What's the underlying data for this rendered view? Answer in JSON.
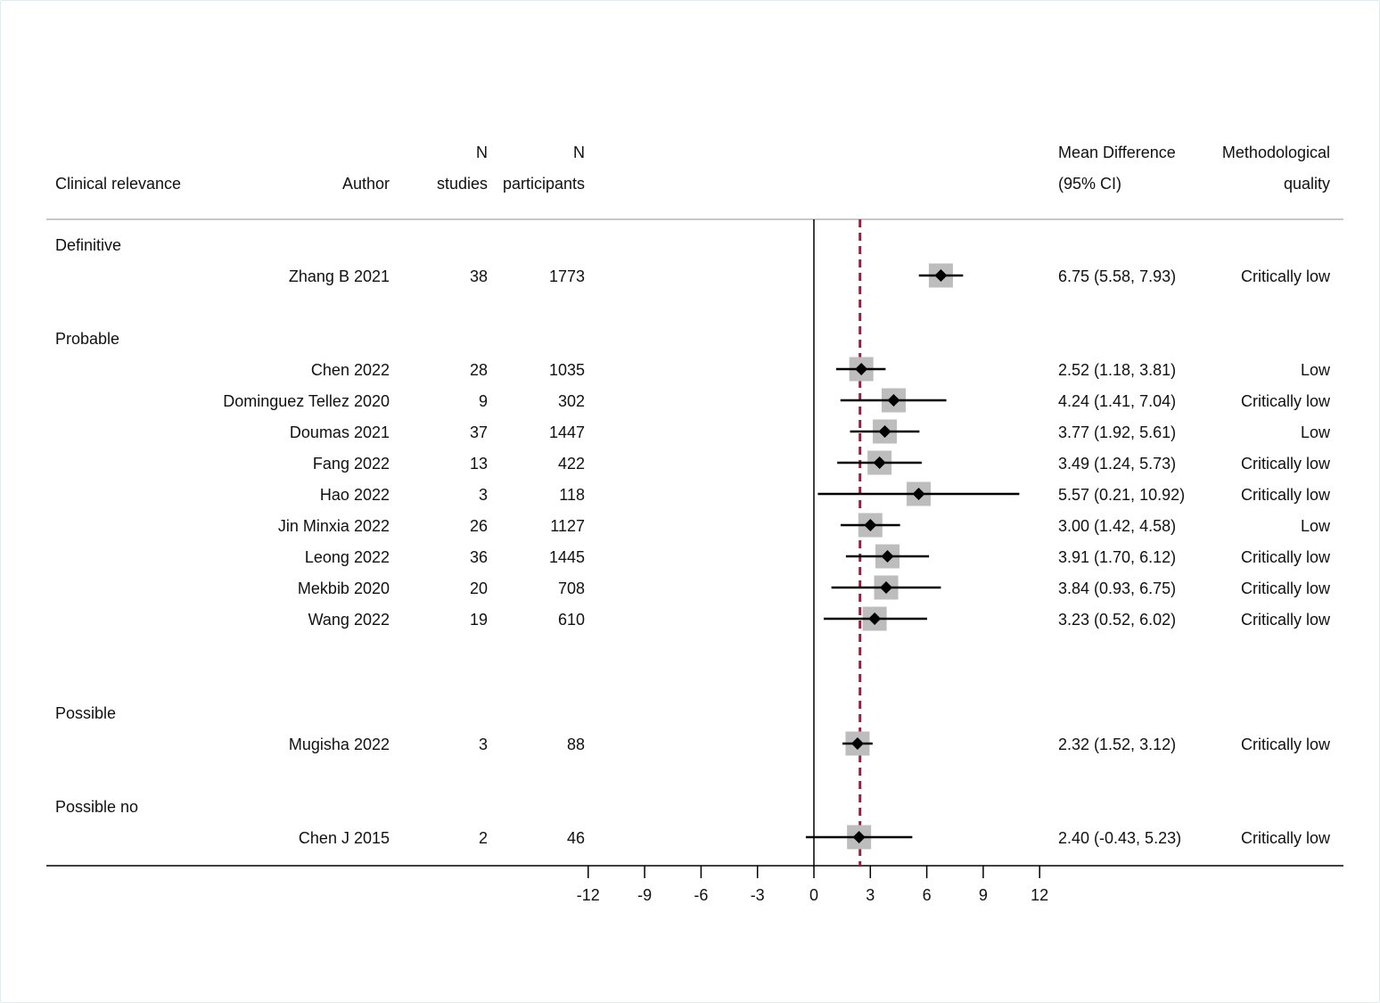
{
  "chart_data": {
    "type": "forest",
    "headers": {
      "clinical_relevance": "Clinical relevance",
      "author": "Author",
      "n_studies": [
        "N",
        "studies"
      ],
      "n_participants": [
        "N",
        "participants"
      ],
      "estimate": [
        "Mean Difference",
        "(95% CI)"
      ],
      "quality": [
        "Methodological",
        "quality"
      ]
    },
    "groups": [
      {
        "label": "Definitive",
        "rows": [
          {
            "author": "Zhang B 2021",
            "n_studies": "38",
            "n_participants": "1773",
            "md": 6.75,
            "lo": 5.58,
            "hi": 7.93,
            "ci_text": "6.75 (5.58, 7.93)",
            "quality": "Critically low"
          }
        ]
      },
      {
        "label": "Probable",
        "rows": [
          {
            "author": "Chen 2022",
            "n_studies": "28",
            "n_participants": "1035",
            "md": 2.52,
            "lo": 1.18,
            "hi": 3.81,
            "ci_text": "2.52 (1.18, 3.81)",
            "quality": "Low"
          },
          {
            "author": "Dominguez Tellez 2020",
            "n_studies": "9",
            "n_participants": "302",
            "md": 4.24,
            "lo": 1.41,
            "hi": 7.04,
            "ci_text": "4.24 (1.41, 7.04)",
            "quality": "Critically low"
          },
          {
            "author": "Doumas 2021",
            "n_studies": "37",
            "n_participants": "1447",
            "md": 3.77,
            "lo": 1.92,
            "hi": 5.61,
            "ci_text": "3.77 (1.92, 5.61)",
            "quality": "Low"
          },
          {
            "author": "Fang 2022",
            "n_studies": "13",
            "n_participants": "422",
            "md": 3.49,
            "lo": 1.24,
            "hi": 5.73,
            "ci_text": "3.49 (1.24, 5.73)",
            "quality": "Critically low"
          },
          {
            "author": "Hao 2022",
            "n_studies": "3",
            "n_participants": "118",
            "md": 5.57,
            "lo": 0.21,
            "hi": 10.92,
            "ci_text": "5.57 (0.21, 10.92)",
            "quality": "Critically low"
          },
          {
            "author": "Jin Minxia 2022",
            "n_studies": "26",
            "n_participants": "1127",
            "md": 3.0,
            "lo": 1.42,
            "hi": 4.58,
            "ci_text": "3.00 (1.42, 4.58)",
            "quality": "Low"
          },
          {
            "author": "Leong 2022",
            "n_studies": "36",
            "n_participants": "1445",
            "md": 3.91,
            "lo": 1.7,
            "hi": 6.12,
            "ci_text": "3.91 (1.70, 6.12)",
            "quality": "Critically low"
          },
          {
            "author": "Mekbib 2020",
            "n_studies": "20",
            "n_participants": "708",
            "md": 3.84,
            "lo": 0.93,
            "hi": 6.75,
            "ci_text": "3.84 (0.93, 6.75)",
            "quality": "Critically low"
          },
          {
            "author": "Wang 2022",
            "n_studies": "19",
            "n_participants": "610",
            "md": 3.23,
            "lo": 0.52,
            "hi": 6.02,
            "ci_text": "3.23 (0.52, 6.02)",
            "quality": "Critically low"
          }
        ]
      },
      {
        "label": "Possible",
        "rows": [
          {
            "author": "Mugisha 2022",
            "n_studies": "3",
            "n_participants": "88",
            "md": 2.32,
            "lo": 1.52,
            "hi": 3.12,
            "ci_text": "2.32 (1.52, 3.12)",
            "quality": "Critically low"
          }
        ]
      },
      {
        "label": "Possible no",
        "rows": [
          {
            "author": "Chen J 2015",
            "n_studies": "2",
            "n_participants": "46",
            "md": 2.4,
            "lo": -0.43,
            "hi": 5.23,
            "ci_text": "2.40 (-0.43, 5.23)",
            "quality": "Critically low"
          }
        ]
      }
    ],
    "x_ticks": [
      "-12",
      "-9",
      "-6",
      "-3",
      "0",
      "3",
      "6",
      "9",
      "12"
    ],
    "xlim": [
      -12,
      12
    ],
    "null_line": 0,
    "pooled_reference": 2.45,
    "colors": {
      "box": "#bdbdbd",
      "marker": "#000000",
      "reference_line": "#a31b3c",
      "rule": "#c8c8c8",
      "axis": "#000000"
    }
  }
}
